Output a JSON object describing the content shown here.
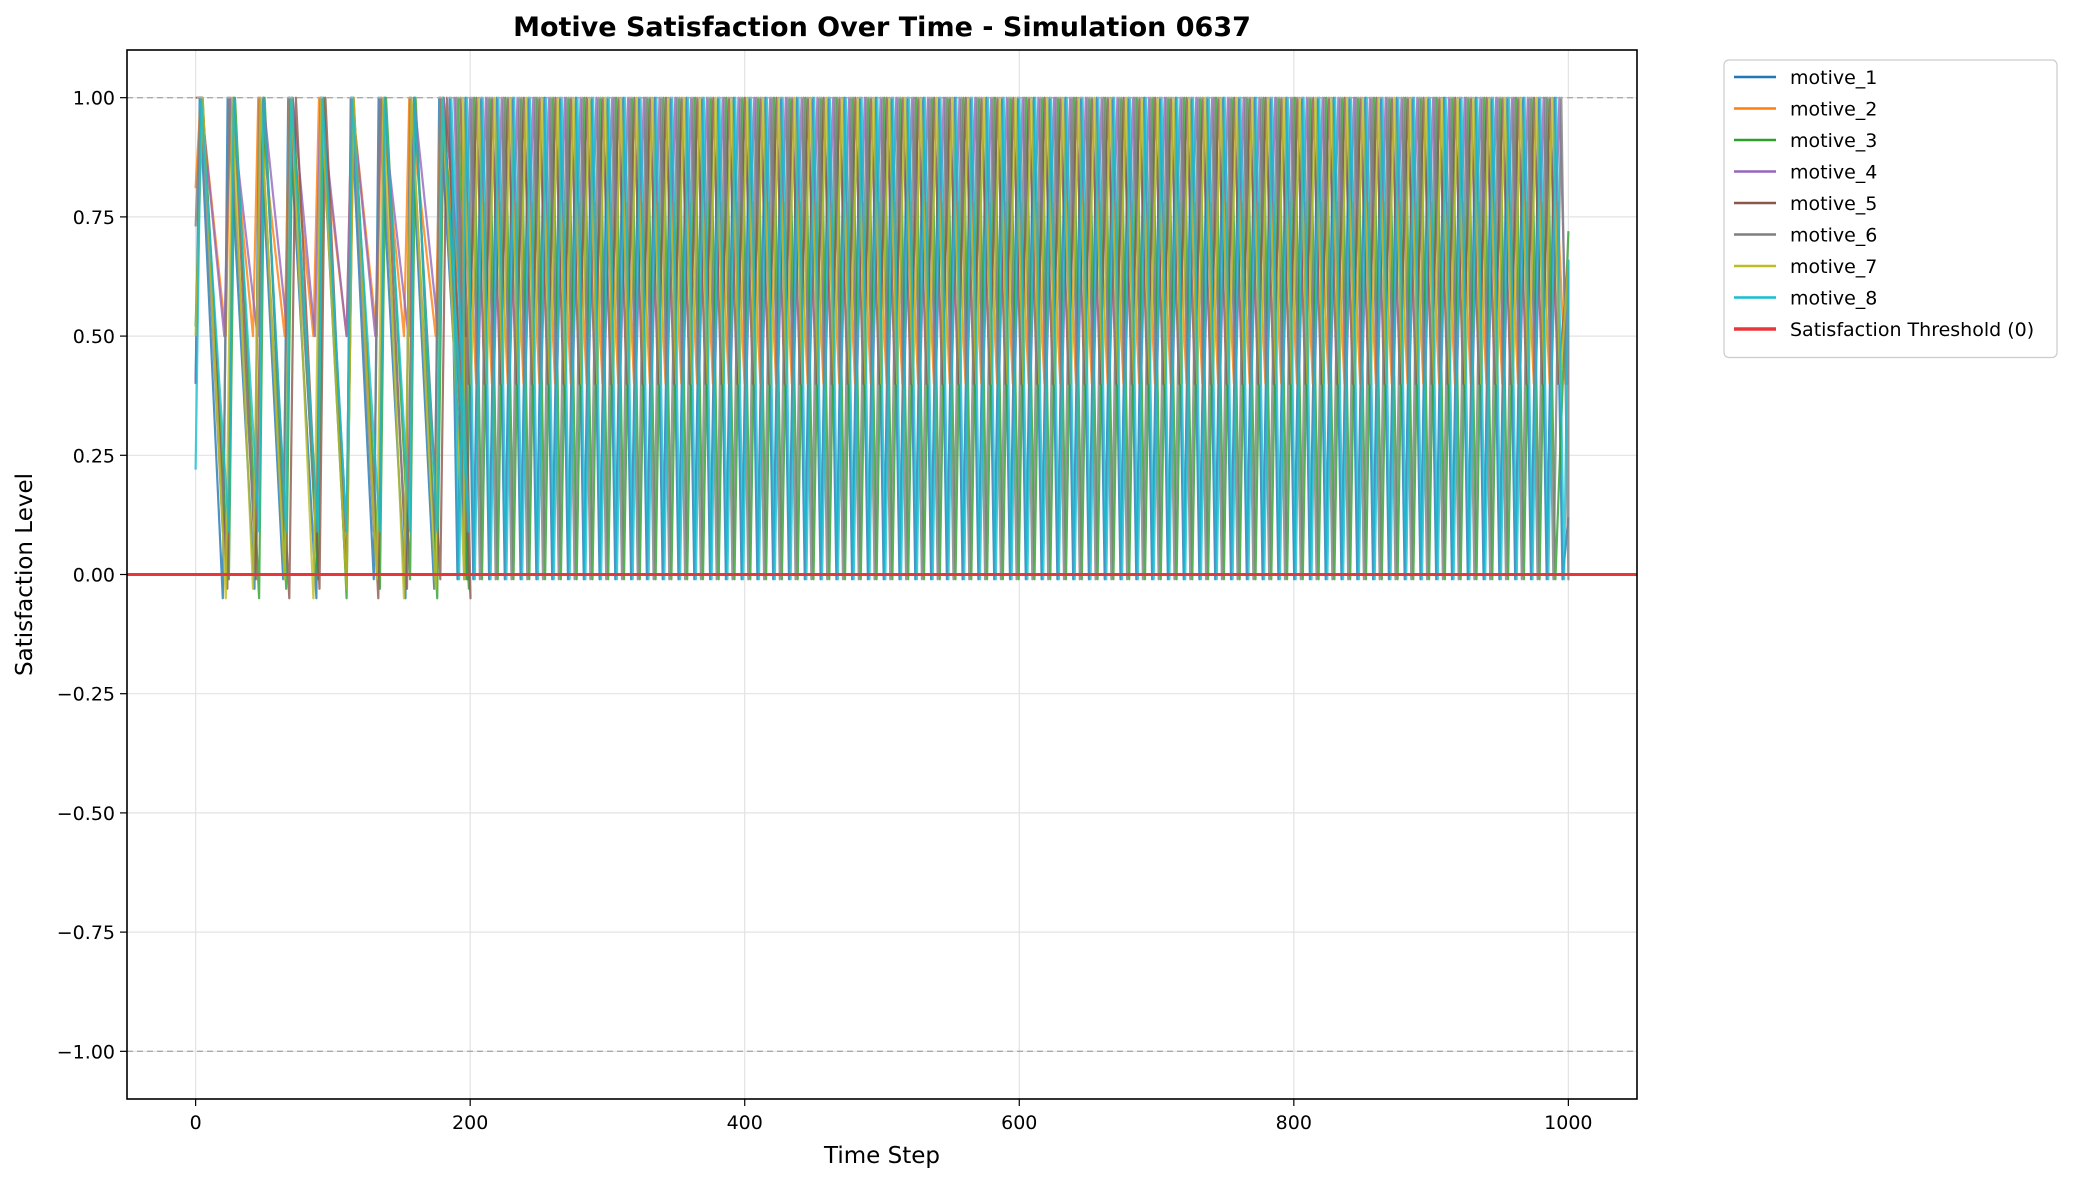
{
  "chart_data": {
    "type": "line",
    "title": "Motive Satisfaction Over Time - Simulation 0637",
    "xlabel": "Time Step",
    "ylabel": "Satisfaction Level",
    "xlim": [
      -50,
      1050
    ],
    "ylim": [
      -1.1,
      1.1
    ],
    "x_ticks": [
      "0",
      "200",
      "400",
      "600",
      "800",
      "1000"
    ],
    "y_ticks": [
      "1.00",
      "0.75",
      "0.50",
      "0.25",
      "0.00",
      "−0.25",
      "−0.50",
      "−0.75",
      "−1.00"
    ],
    "grid": true,
    "legend_position": "outside-right",
    "reference_lines": [
      {
        "name": "Satisfaction Threshold (0)",
        "y": 0,
        "color": "#e8373b",
        "style": "solid"
      },
      {
        "y": 1,
        "color": "#aaaaaa",
        "style": "dashed"
      },
      {
        "y": -1,
        "color": "#aaaaaa",
        "style": "dashed"
      }
    ],
    "series": [
      {
        "name": "motive_1",
        "color": "#1f77b4",
        "start": 0.4,
        "period": 11.5,
        "phase": 0.0,
        "min": -0.01,
        "max": 1.0,
        "end_value": 0.12
      },
      {
        "name": "motive_2",
        "color": "#ff7f0e",
        "start": 0.81,
        "period": 11.5,
        "phase": 0.18,
        "min": 0.4,
        "max": 0.78,
        "end_value": 0.66
      },
      {
        "name": "motive_3",
        "color": "#2ca02c",
        "start": 0.52,
        "period": 11.5,
        "phase": 0.55,
        "min": -0.01,
        "max": 1.0,
        "end_value": 0.72
      },
      {
        "name": "motive_4",
        "color": "#9467bd",
        "start": 0.4,
        "period": 11.5,
        "phase": 0.3,
        "min": 0.4,
        "max": 1.0,
        "end_value": 0.66
      },
      {
        "name": "motive_5",
        "color": "#8c564b",
        "start": 1.0,
        "period": 11.5,
        "phase": 0.7,
        "min": 0.4,
        "max": 1.0,
        "end_value": 0.66
      },
      {
        "name": "motive_6",
        "color": "#7f7f7f",
        "start": 0.73,
        "period": 11.5,
        "phase": 0.42,
        "min": -0.01,
        "max": 1.0,
        "end_value": 0.66
      },
      {
        "name": "motive_7",
        "color": "#bcbd22",
        "start": 0.5,
        "period": 11.5,
        "phase": 0.85,
        "min": 0.4,
        "max": 1.0,
        "end_value": 0.66
      },
      {
        "name": "motive_8",
        "color": "#17becf",
        "start": 0.22,
        "period": 11.5,
        "phase": 0.1,
        "min": -0.01,
        "max": 1.0,
        "end_value": 0.66
      }
    ],
    "early_phase": {
      "x_end": 185,
      "min": -0.05,
      "period": 22
    }
  }
}
